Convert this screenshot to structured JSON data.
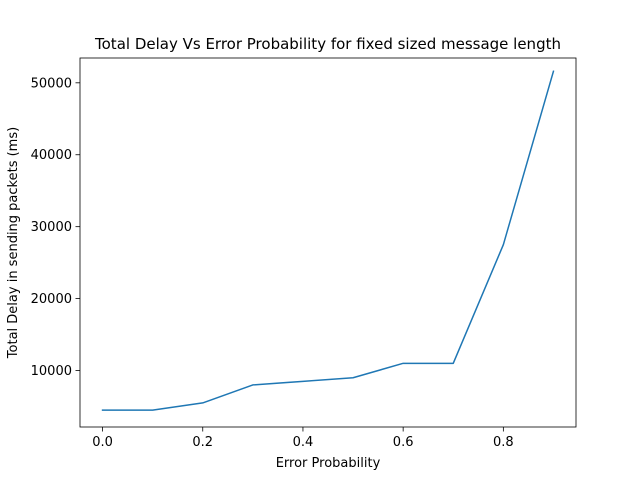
{
  "chart_data": {
    "type": "line",
    "title": "Total Delay Vs Error Probability for fixed sized message length",
    "xlabel": "Error Probability",
    "ylabel": "Total Delay in sending packets (ms)",
    "xlim": [
      -0.045,
      0.945
    ],
    "ylim": [
      2150,
      53450
    ],
    "xticks": [
      0.0,
      0.2,
      0.4,
      0.6,
      0.8
    ],
    "xtick_labels": [
      "0.0",
      "0.2",
      "0.4",
      "0.6",
      "0.8"
    ],
    "yticks": [
      10000,
      20000,
      30000,
      40000,
      50000
    ],
    "ytick_labels": [
      "10000",
      "20000",
      "30000",
      "40000",
      "50000"
    ],
    "grid": false,
    "series": [
      {
        "color": "#1f77b4",
        "x": [
          0.0,
          0.1,
          0.2,
          0.3,
          0.4,
          0.5,
          0.6,
          0.7,
          0.8,
          0.9
        ],
        "y": [
          4500,
          4500,
          5500,
          8000,
          8500,
          9000,
          11000,
          11000,
          27500,
          51600
        ]
      }
    ]
  }
}
